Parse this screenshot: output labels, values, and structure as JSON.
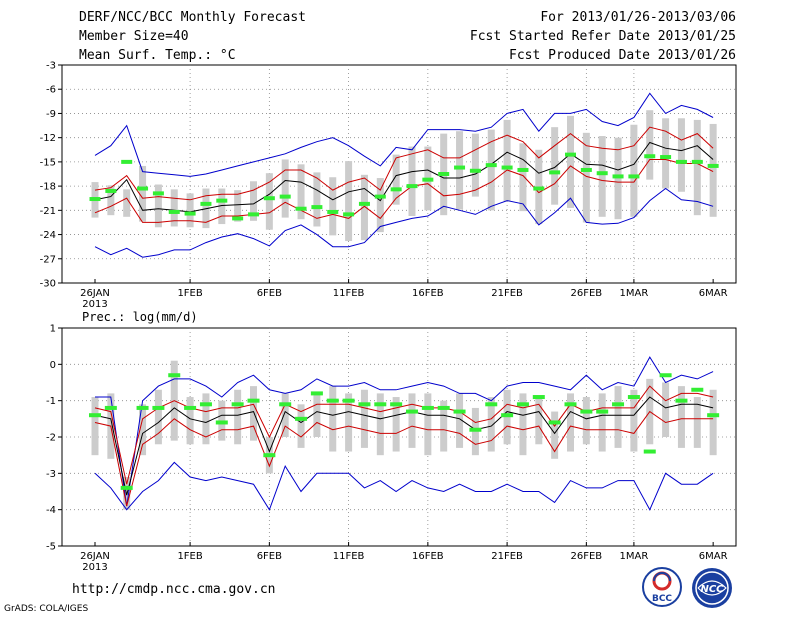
{
  "header": {
    "title": "DERF/NCC/BCC Monthly Forecast",
    "member_size": "Member Size=40",
    "period": "For 2013/01/26-2013/03/06",
    "refer_date": "Fcst Started Refer Date 2013/01/25",
    "produced_date": "Fcst Produced Date 2013/01/26"
  },
  "footer": {
    "url": "http://cmdp.ncc.cma.gov.cn",
    "grads": "GrADS: COLA/IGES"
  },
  "logos": {
    "bcc": "BCC",
    "ncc": "NCC"
  },
  "colors": {
    "max_min": "#0000cc",
    "spread": "#cc0000",
    "mean": "#000000",
    "obs": "#33ee33",
    "box": "#cccccc"
  },
  "chart_data": [
    {
      "type": "line",
      "title": "Mean Surf. Temp.: °C",
      "ylim": [
        -30,
        -3
      ],
      "yticks": [
        -3,
        -6,
        -9,
        -12,
        -15,
        -18,
        -21,
        -24,
        -27,
        -30
      ],
      "xticks": [
        {
          "day": 0,
          "label": "26JAN",
          "sub": "2013"
        },
        {
          "day": 6,
          "label": "1FEB"
        },
        {
          "day": 11,
          "label": "6FEB"
        },
        {
          "day": 16,
          "label": "11FEB"
        },
        {
          "day": 21,
          "label": "16FEB"
        },
        {
          "day": 26,
          "label": "21FEB"
        },
        {
          "day": 31,
          "label": "26FEB"
        },
        {
          "day": 34,
          "label": "1MAR"
        },
        {
          "day": 39,
          "label": "6MAR"
        }
      ],
      "series": [
        {
          "name": "max",
          "values": [
            -14.2,
            -13,
            -10.5,
            -16.2,
            -16.4,
            -16.6,
            -16.8,
            -16.5,
            -16,
            -15.5,
            -15,
            -14.5,
            -14,
            -13.2,
            -12.5,
            -12,
            -13,
            -14.3,
            -15.5,
            -13.2,
            -13.5,
            -11,
            -11,
            -11,
            -11.2,
            -10.7,
            -9,
            -8.5,
            -11.2,
            -9,
            -9,
            -8.5,
            -10,
            -10.5,
            -9.5,
            -6.5,
            -9,
            -8,
            -8.5,
            -9.5
          ]
        },
        {
          "name": "upper",
          "values": [
            -18.5,
            -18.2,
            -16.7,
            -19.5,
            -19.3,
            -19.5,
            -19.7,
            -19.2,
            -19,
            -19,
            -18.5,
            -17.5,
            -16,
            -16,
            -17,
            -18.5,
            -17.5,
            -17,
            -18.5,
            -14.5,
            -14,
            -13.5,
            -14.5,
            -14.5,
            -13.5,
            -12.5,
            -11.7,
            -12.5,
            -14.5,
            -13,
            -11.5,
            -13,
            -13.3,
            -13.5,
            -13,
            -10.7,
            -11.2,
            -12.3,
            -11.5,
            -13.3
          ]
        },
        {
          "name": "mean",
          "values": [
            -19.7,
            -19.3,
            -17.2,
            -21,
            -20.8,
            -21,
            -21.2,
            -20.8,
            -20.4,
            -20.3,
            -20.2,
            -19,
            -17.3,
            -17.5,
            -18.5,
            -19.7,
            -18.7,
            -18.3,
            -19.8,
            -16.7,
            -16.2,
            -16,
            -17,
            -17,
            -16.5,
            -15.3,
            -13.8,
            -14.7,
            -16.4,
            -15.7,
            -14,
            -15.3,
            -15.4,
            -16,
            -15.3,
            -12.6,
            -13.3,
            -13.6,
            -13,
            -14.7
          ]
        },
        {
          "name": "lower",
          "values": [
            -21.3,
            -20.5,
            -19.5,
            -22.5,
            -22.5,
            -22.3,
            -22.3,
            -22.5,
            -21.7,
            -21.7,
            -21.5,
            -21.3,
            -20,
            -21,
            -22,
            -21.5,
            -22,
            -20.5,
            -22,
            -19.5,
            -18,
            -17.7,
            -19.2,
            -19,
            -18.5,
            -17.5,
            -16,
            -16.7,
            -18.8,
            -17.7,
            -15.5,
            -16.8,
            -17.3,
            -17.5,
            -17.5,
            -14.7,
            -14.7,
            -15.2,
            -15.2,
            -16.2
          ]
        },
        {
          "name": "min",
          "values": [
            -25.5,
            -26.5,
            -25.7,
            -26.8,
            -26.5,
            -25.9,
            -25.9,
            -25,
            -24.3,
            -23.9,
            -24.5,
            -25.4,
            -23.5,
            -22.8,
            -24,
            -25.5,
            -25.5,
            -25,
            -23,
            -22.5,
            -22,
            -21.7,
            -20.5,
            -21,
            -21.5,
            -20.5,
            -19.8,
            -20.2,
            -22.8,
            -21.3,
            -19.5,
            -22.5,
            -22.7,
            -22.6,
            -21.9,
            -19.8,
            -18.3,
            -19.7,
            -19.9,
            -20.5
          ]
        },
        {
          "name": "obs",
          "values": [
            -19.6,
            -18.6,
            -15,
            -18.3,
            -18.9,
            -21.2,
            -21.4,
            -20.2,
            -19.8,
            -22,
            -21.5,
            -19.5,
            -19.3,
            -20.8,
            -20.6,
            -21.2,
            -21.5,
            -20.2,
            -19.3,
            -18.4,
            -18,
            -17.2,
            -16.5,
            -15.7,
            -16.1,
            -15.4,
            -15.7,
            -16,
            -18.3,
            -16.3,
            -14.1,
            -16,
            -16.4,
            -16.8,
            -16.8,
            -14.3,
            -14.4,
            -15,
            -15,
            -15.5
          ]
        }
      ],
      "box_ranges": [
        [
          -21.9,
          -17.5
        ],
        [
          -21.6,
          -17.9
        ],
        [
          -21.8,
          -18.4
        ],
        [
          -22.4,
          -15.5
        ],
        [
          -23.1,
          -17.8
        ],
        [
          -23.0,
          -18.4
        ],
        [
          -23.1,
          -18.9
        ],
        [
          -23.2,
          -18.3
        ],
        [
          -22.7,
          -18.3
        ],
        [
          -22.4,
          -18.5
        ],
        [
          -22.3,
          -17.4
        ],
        [
          -23.4,
          -16.4
        ],
        [
          -21.9,
          -14.7
        ],
        [
          -22.1,
          -15.3
        ],
        [
          -23.0,
          -16.3
        ],
        [
          -24.1,
          -16.9
        ],
        [
          -24.8,
          -14.9
        ],
        [
          -24.7,
          -16.6
        ],
        [
          -23.7,
          -17.0
        ],
        [
          -20.3,
          -14.1
        ],
        [
          -21.7,
          -13.1
        ],
        [
          -21.0,
          -13.1
        ],
        [
          -21.6,
          -11.5
        ],
        [
          -20.9,
          -11.2
        ],
        [
          -19.3,
          -11.5
        ],
        [
          -21.0,
          -11.0
        ],
        [
          -19.9,
          -9.8
        ],
        [
          -21.1,
          -12.7
        ],
        [
          -22.7,
          -13.5
        ],
        [
          -20.3,
          -10.7
        ],
        [
          -20.7,
          -9.3
        ],
        [
          -22.5,
          -11.4
        ],
        [
          -21.8,
          -11.8
        ],
        [
          -22.1,
          -12.0
        ],
        [
          -21.8,
          -10.4
        ],
        [
          -17.2,
          -8.6
        ],
        [
          -18.3,
          -9.6
        ],
        [
          -18.7,
          -9.6
        ],
        [
          -21.6,
          -9.8
        ],
        [
          -21.8,
          -10.3
        ]
      ]
    },
    {
      "type": "line",
      "title": "Prec.: log(mm/d)",
      "ylim": [
        -5,
        1
      ],
      "yticks": [
        1,
        0,
        -1,
        -2,
        -3,
        -4,
        -5
      ],
      "xticks": [
        {
          "day": 0,
          "label": "26JAN",
          "sub": "2013"
        },
        {
          "day": 6,
          "label": "1FEB"
        },
        {
          "day": 11,
          "label": "6FEB"
        },
        {
          "day": 16,
          "label": "11FEB"
        },
        {
          "day": 21,
          "label": "16FEB"
        },
        {
          "day": 26,
          "label": "21FEB"
        },
        {
          "day": 31,
          "label": "26FEB"
        },
        {
          "day": 34,
          "label": "1MAR"
        },
        {
          "day": 39,
          "label": "6MAR"
        }
      ],
      "series": [
        {
          "name": "max",
          "values": [
            -0.9,
            -0.9,
            -3.9,
            -1.0,
            -0.6,
            -0.4,
            -0.4,
            -0.6,
            -0.9,
            -0.5,
            -0.3,
            -0.7,
            -0.8,
            -0.7,
            -0.4,
            -0.6,
            -0.6,
            -0.5,
            -0.7,
            -0.7,
            -0.6,
            -0.5,
            -0.6,
            -0.8,
            -0.8,
            -1.0,
            -0.6,
            -0.5,
            -0.5,
            -0.6,
            -0.7,
            -0.3,
            -0.7,
            -0.5,
            -0.6,
            0.2,
            -0.5,
            -0.3,
            -0.4,
            -0.2
          ]
        },
        {
          "name": "upper",
          "values": [
            -1.2,
            -1.3,
            -3.3,
            -1.5,
            -1.2,
            -1.0,
            -1.2,
            -1.3,
            -1.2,
            -1.2,
            -1.1,
            -2.0,
            -1.1,
            -1.3,
            -1.1,
            -1.1,
            -1.1,
            -1.2,
            -1.3,
            -1.2,
            -1.1,
            -1.2,
            -1.2,
            -1.3,
            -1.6,
            -1.5,
            -1.1,
            -1.2,
            -1.1,
            -1.7,
            -1.1,
            -1.3,
            -1.2,
            -1.2,
            -1.2,
            -0.6,
            -1.0,
            -0.8,
            -0.8,
            -0.9
          ]
        },
        {
          "name": "mean",
          "values": [
            -1.4,
            -1.5,
            -3.6,
            -1.9,
            -1.6,
            -1.2,
            -1.5,
            -1.6,
            -1.4,
            -1.4,
            -1.3,
            -2.4,
            -1.3,
            -1.6,
            -1.3,
            -1.4,
            -1.3,
            -1.4,
            -1.5,
            -1.4,
            -1.3,
            -1.4,
            -1.4,
            -1.5,
            -1.8,
            -1.7,
            -1.3,
            -1.4,
            -1.3,
            -1.9,
            -1.3,
            -1.5,
            -1.4,
            -1.4,
            -1.4,
            -0.9,
            -1.2,
            -1.1,
            -1.1,
            -1.2
          ]
        },
        {
          "name": "lower",
          "values": [
            -1.6,
            -1.7,
            -3.9,
            -2.2,
            -1.9,
            -1.5,
            -1.8,
            -2.0,
            -1.8,
            -1.8,
            -1.7,
            -2.8,
            -1.7,
            -2.0,
            -1.6,
            -1.8,
            -1.7,
            -1.8,
            -1.9,
            -1.9,
            -1.7,
            -1.8,
            -1.8,
            -1.9,
            -2.2,
            -2.1,
            -1.7,
            -1.8,
            -1.7,
            -2.4,
            -1.7,
            -1.8,
            -1.8,
            -1.8,
            -1.9,
            -1.3,
            -1.6,
            -1.5,
            -1.5,
            -1.5
          ]
        },
        {
          "name": "min",
          "values": [
            -3.0,
            -3.4,
            -4.0,
            -3.5,
            -3.2,
            -2.7,
            -3.1,
            -3.2,
            -3.1,
            -3.2,
            -3.3,
            -4.0,
            -2.8,
            -3.5,
            -3.0,
            -3.0,
            -3.0,
            -3.4,
            -3.2,
            -3.5,
            -3.2,
            -3.4,
            -3.5,
            -3.3,
            -3.5,
            -3.5,
            -3.3,
            -3.5,
            -3.5,
            -3.8,
            -3.2,
            -3.4,
            -3.4,
            -3.2,
            -3.2,
            -4.0,
            -3.0,
            -3.3,
            -3.3,
            -3.0
          ]
        },
        {
          "name": "obs",
          "values": [
            -1.4,
            -1.2,
            -3.4,
            -1.2,
            -1.2,
            -0.3,
            -1.2,
            -1.1,
            -1.6,
            -1.1,
            -1.0,
            -2.5,
            -1.1,
            -1.5,
            -0.8,
            -1.0,
            -1.0,
            -1.1,
            -1.1,
            -1.1,
            -1.3,
            -1.2,
            -1.2,
            -1.3,
            -1.8,
            -1.1,
            -1.4,
            -1.1,
            -0.9,
            -1.6,
            -1.1,
            -1.3,
            -1.3,
            -1.1,
            -0.9,
            -2.4,
            -0.3,
            -1.0,
            -0.7,
            -1.4
          ]
        }
      ],
      "box_ranges": [
        [
          -2.5,
          -0.9
        ],
        [
          -2.6,
          -0.8
        ],
        [
          -4.0,
          -3.1
        ],
        [
          -2.5,
          -1.1
        ],
        [
          -2.2,
          -0.7
        ],
        [
          -2.1,
          0.1
        ],
        [
          -2.2,
          -0.9
        ],
        [
          -2.2,
          -0.8
        ],
        [
          -2.1,
          -1.0
        ],
        [
          -2.2,
          -0.7
        ],
        [
          -2.1,
          -0.6
        ],
        [
          -3.0,
          -2.0
        ],
        [
          -2.0,
          -0.8
        ],
        [
          -2.3,
          -1.1
        ],
        [
          -2.0,
          -0.8
        ],
        [
          -2.4,
          -0.6
        ],
        [
          -2.4,
          -0.8
        ],
        [
          -2.3,
          -0.7
        ],
        [
          -2.5,
          -0.8
        ],
        [
          -2.4,
          -0.9
        ],
        [
          -2.3,
          -0.8
        ],
        [
          -2.5,
          -0.8
        ],
        [
          -2.4,
          -1.0
        ],
        [
          -2.3,
          -0.8
        ],
        [
          -2.5,
          -1.2
        ],
        [
          -2.4,
          -0.9
        ],
        [
          -2.2,
          -0.7
        ],
        [
          -2.5,
          -0.8
        ],
        [
          -2.2,
          -0.9
        ],
        [
          -2.6,
          -1.3
        ],
        [
          -2.4,
          -0.8
        ],
        [
          -2.2,
          -0.9
        ],
        [
          -2.4,
          -0.8
        ],
        [
          -2.3,
          -0.6
        ],
        [
          -2.4,
          -0.7
        ],
        [
          -2.2,
          -0.4
        ],
        [
          -2.0,
          -0.5
        ],
        [
          -2.3,
          -0.6
        ],
        [
          -2.3,
          -0.9
        ],
        [
          -2.5,
          -0.7
        ]
      ]
    }
  ]
}
